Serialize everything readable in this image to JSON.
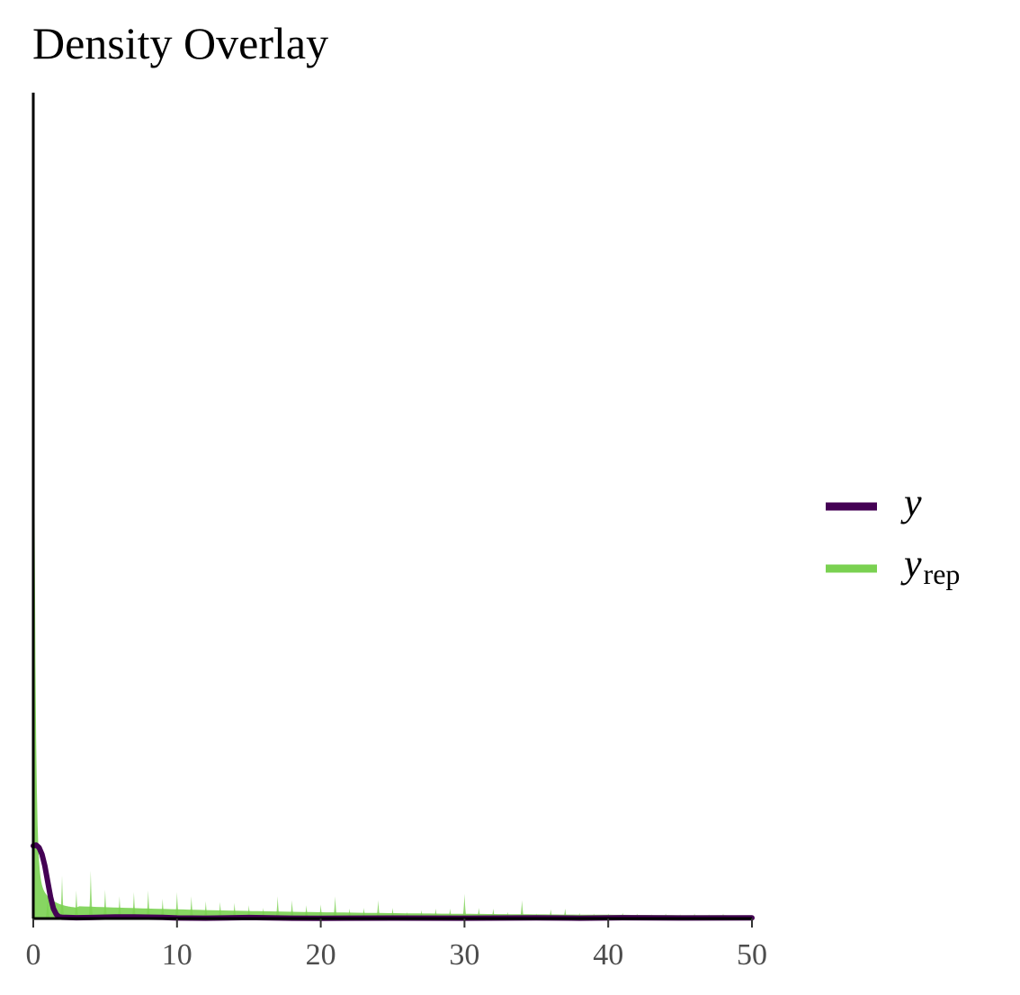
{
  "chart_data": {
    "type": "area",
    "title": "Density Overlay",
    "xlabel": "",
    "ylabel": "",
    "xlim": [
      0,
      50
    ],
    "ylim": [
      0,
      1
    ],
    "x_ticks": [
      0,
      10,
      20,
      30,
      40,
      50
    ],
    "x_tick_labels": [
      "0",
      "10",
      "20",
      "30",
      "40",
      "50"
    ],
    "y_axis_ticks_shown": false,
    "grid": false,
    "legend_position": "right",
    "series": [
      {
        "name": "y",
        "legend_label": "y",
        "kind": "density-line",
        "color": "#440154",
        "points": [
          [
            0.0,
            0.088
          ],
          [
            0.2,
            0.089
          ],
          [
            0.4,
            0.086
          ],
          [
            0.6,
            0.078
          ],
          [
            0.8,
            0.064
          ],
          [
            1.0,
            0.045
          ],
          [
            1.2,
            0.026
          ],
          [
            1.4,
            0.012
          ],
          [
            1.6,
            0.005
          ],
          [
            1.8,
            0.002
          ],
          [
            2.0,
            0.0015
          ],
          [
            3.0,
            0.001
          ],
          [
            4.0,
            0.0012
          ],
          [
            5.0,
            0.0016
          ],
          [
            6.0,
            0.002
          ],
          [
            7.0,
            0.0018
          ],
          [
            8.0,
            0.0016
          ],
          [
            9.0,
            0.0014
          ],
          [
            10.0,
            0.0006
          ],
          [
            12.0,
            0.0004
          ],
          [
            15.0,
            0.0012
          ],
          [
            18.0,
            0.0004
          ],
          [
            20.0,
            0.0003
          ],
          [
            25.0,
            0.0005
          ],
          [
            30.0,
            0.0004
          ],
          [
            35.0,
            0.0008
          ],
          [
            38.0,
            0.0004
          ],
          [
            41.0,
            0.001
          ],
          [
            45.0,
            0.0006
          ],
          [
            50.0,
            0.0008
          ]
        ]
      },
      {
        "name": "y_rep",
        "legend_label": "y",
        "legend_subscript": "rep",
        "kind": "density-fill",
        "color": "#7ad151",
        "peak_height": 1.0,
        "spikes": [
          [
            1,
            0.028
          ],
          [
            2,
            0.052
          ],
          [
            3,
            0.034
          ],
          [
            4,
            0.058
          ],
          [
            5,
            0.035
          ],
          [
            6,
            0.027
          ],
          [
            7,
            0.032
          ],
          [
            8,
            0.034
          ],
          [
            9,
            0.024
          ],
          [
            10,
            0.032
          ],
          [
            11,
            0.027
          ],
          [
            12,
            0.021
          ],
          [
            13,
            0.02
          ],
          [
            14,
            0.019
          ],
          [
            15,
            0.016
          ],
          [
            16,
            0.013
          ],
          [
            17,
            0.027
          ],
          [
            18,
            0.022
          ],
          [
            19,
            0.016
          ],
          [
            20,
            0.017
          ],
          [
            21,
            0.027
          ],
          [
            22,
            0.012
          ],
          [
            23,
            0.013
          ],
          [
            24,
            0.022
          ],
          [
            25,
            0.013
          ],
          [
            26,
            0.008
          ],
          [
            27,
            0.01
          ],
          [
            28,
            0.012
          ],
          [
            29,
            0.012
          ],
          [
            30,
            0.03
          ],
          [
            31,
            0.013
          ],
          [
            32,
            0.012
          ],
          [
            33,
            0.008
          ],
          [
            34,
            0.022
          ],
          [
            35,
            0.006
          ],
          [
            36,
            0.011
          ],
          [
            37,
            0.012
          ],
          [
            38,
            0.007
          ],
          [
            39,
            0.006
          ],
          [
            40,
            0.006
          ],
          [
            41,
            0.007
          ],
          [
            42,
            0.006
          ],
          [
            43,
            0.005
          ],
          [
            44,
            0.006
          ],
          [
            45,
            0.005
          ],
          [
            46,
            0.006
          ],
          [
            47,
            0.005
          ],
          [
            48,
            0.006
          ],
          [
            49,
            0.004
          ]
        ]
      }
    ]
  }
}
